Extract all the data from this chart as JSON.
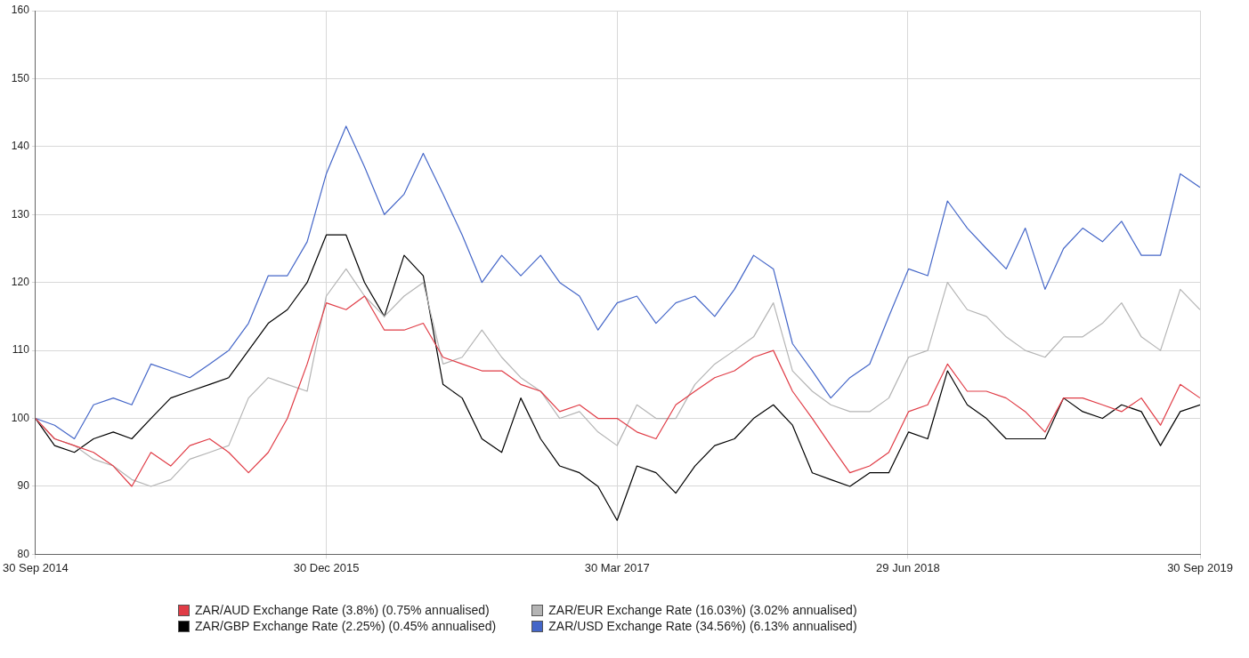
{
  "chart_data": {
    "type": "line",
    "x": [
      "2014-09-30",
      "2014-10-30",
      "2014-11-30",
      "2014-12-30",
      "2015-01-30",
      "2015-02-28",
      "2015-03-30",
      "2015-04-30",
      "2015-05-30",
      "2015-06-30",
      "2015-07-30",
      "2015-08-30",
      "2015-09-30",
      "2015-10-30",
      "2015-11-30",
      "2015-12-30",
      "2016-01-30",
      "2016-02-28",
      "2016-03-30",
      "2016-04-30",
      "2016-05-30",
      "2016-06-30",
      "2016-07-30",
      "2016-08-30",
      "2016-09-30",
      "2016-10-30",
      "2016-11-30",
      "2016-12-30",
      "2017-01-30",
      "2017-02-28",
      "2017-03-30",
      "2017-04-30",
      "2017-05-30",
      "2017-06-30",
      "2017-07-30",
      "2017-08-30",
      "2017-09-30",
      "2017-10-30",
      "2017-11-30",
      "2017-12-30",
      "2018-01-30",
      "2018-02-28",
      "2018-03-30",
      "2018-04-30",
      "2018-05-30",
      "2018-06-30",
      "2018-07-30",
      "2018-08-30",
      "2018-09-30",
      "2018-10-30",
      "2018-11-30",
      "2018-12-30",
      "2019-01-30",
      "2019-02-28",
      "2019-03-30",
      "2019-04-30",
      "2019-05-30",
      "2019-06-30",
      "2019-07-30",
      "2019-08-30",
      "2019-09-30"
    ],
    "series": [
      {
        "name": "ZAR/AUD Exchange Rate (3.8%) (0.75% annualised)",
        "color": "#e03c46",
        "values": [
          100,
          97,
          96,
          95,
          93,
          90,
          95,
          93,
          96,
          97,
          95,
          92,
          95,
          100,
          108,
          117,
          116,
          118,
          113,
          113,
          114,
          109,
          108,
          107,
          107,
          105,
          104,
          101,
          102,
          100,
          100,
          98,
          97,
          102,
          104,
          106,
          107,
          109,
          110,
          104,
          100,
          96,
          92,
          93,
          95,
          101,
          102,
          108,
          104,
          104,
          103,
          101,
          98,
          103,
          103,
          102,
          101,
          103,
          99,
          105,
          103
        ]
      },
      {
        "name": "ZAR/EUR Exchange Rate (16.03%) (3.02% annualised)",
        "color": "#b4b4b4",
        "values": [
          100,
          97,
          96,
          94,
          93,
          91,
          90,
          91,
          94,
          95,
          96,
          103,
          106,
          105,
          104,
          118,
          122,
          118,
          115,
          118,
          120,
          108,
          109,
          113,
          109,
          106,
          104,
          100,
          101,
          98,
          96,
          102,
          100,
          100,
          105,
          108,
          110,
          112,
          117,
          107,
          104,
          102,
          101,
          101,
          103,
          109,
          110,
          120,
          116,
          115,
          112,
          110,
          109,
          112,
          112,
          114,
          117,
          112,
          110,
          119,
          116
        ]
      },
      {
        "name": "ZAR/GBP Exchange Rate (2.25%) (0.45% annualised)",
        "color": "#000000",
        "values": [
          100,
          96,
          95,
          97,
          98,
          97,
          100,
          103,
          104,
          105,
          106,
          110,
          114,
          116,
          120,
          127,
          127,
          120,
          115,
          124,
          121,
          105,
          103,
          97,
          95,
          103,
          97,
          93,
          92,
          90,
          85,
          93,
          92,
          89,
          93,
          96,
          97,
          100,
          102,
          99,
          92,
          91,
          90,
          92,
          92,
          98,
          97,
          107,
          102,
          100,
          97,
          97,
          97,
          103,
          101,
          100,
          102,
          101,
          96,
          101,
          102
        ]
      },
      {
        "name": "ZAR/USD Exchange Rate (34.56%) (6.13% annualised)",
        "color": "#4466c8",
        "values": [
          100,
          99,
          97,
          102,
          103,
          102,
          108,
          107,
          106,
          108,
          110,
          114,
          121,
          121,
          126,
          136,
          143,
          137,
          130,
          133,
          139,
          133,
          127,
          120,
          124,
          121,
          124,
          120,
          118,
          113,
          117,
          118,
          114,
          117,
          118,
          115,
          119,
          124,
          122,
          111,
          107,
          103,
          106,
          108,
          115,
          122,
          121,
          132,
          128,
          125,
          122,
          128,
          119,
          125,
          128,
          126,
          129,
          124,
          124,
          136,
          134
        ]
      }
    ],
    "xlim": [
      "2014-09-30",
      "2019-09-30"
    ],
    "xticks": [
      {
        "value": "2014-09-30",
        "label": "30 Sep 2014"
      },
      {
        "value": "2015-12-30",
        "label": "30 Dec 2015"
      },
      {
        "value": "2017-03-30",
        "label": "30 Mar 2017"
      },
      {
        "value": "2018-06-29",
        "label": "29 Jun 2018"
      },
      {
        "value": "2019-09-30",
        "label": "30 Sep 2019"
      }
    ],
    "ylim": [
      80,
      160
    ],
    "yticks": [
      80,
      90,
      100,
      110,
      120,
      130,
      140,
      150,
      160
    ],
    "grid": true,
    "legend": "bottom",
    "marker": "none",
    "line_style": "solid"
  }
}
